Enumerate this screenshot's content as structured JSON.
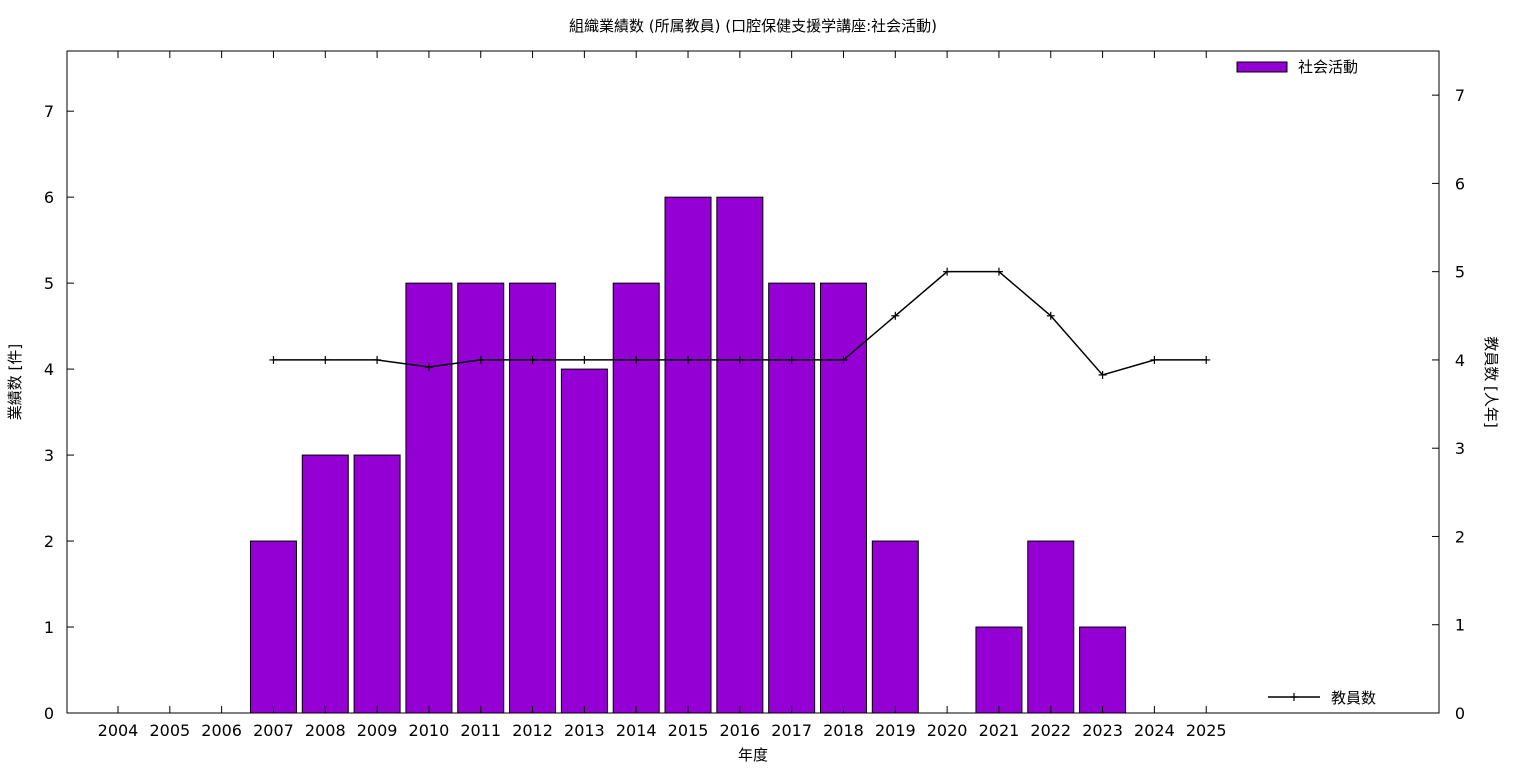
{
  "chart_data": {
    "type": "bar",
    "title": "組織業績数 (所属教員) (口腔保健支援学講座:社会活動)",
    "xlabel": "年度",
    "ylabel": "業績数 [件]",
    "y2label": "教員数 [人年]",
    "categories": [
      "2004",
      "2005",
      "2006",
      "2007",
      "2008",
      "2009",
      "2010",
      "2011",
      "2012",
      "2013",
      "2014",
      "2015",
      "2016",
      "2017",
      "2018",
      "2019",
      "2020",
      "2021",
      "2022",
      "2023",
      "2024",
      "2025"
    ],
    "ylim": [
      0,
      7.7
    ],
    "y2lim": [
      0,
      7.5
    ],
    "yticks": [
      "0",
      "1",
      "2",
      "3",
      "4",
      "5",
      "6",
      "7"
    ],
    "y2ticks": [
      "0",
      "1",
      "2",
      "3",
      "4",
      "5",
      "6",
      "7"
    ],
    "grid": false,
    "legend_placement": "top-right",
    "series": [
      {
        "name": "社会活動",
        "type": "bar",
        "axis": "y",
        "color": "#9400d3",
        "values": [
          0,
          0,
          0,
          2,
          3,
          3,
          5,
          5,
          5,
          4,
          5,
          6,
          6,
          5,
          5,
          2,
          0,
          1,
          2,
          1,
          0,
          0
        ]
      },
      {
        "name": "教員数",
        "type": "line",
        "axis": "y2",
        "color": "#000000",
        "values": [
          null,
          null,
          null,
          4,
          4,
          4,
          3.92,
          4,
          4,
          4,
          4,
          4,
          4,
          4,
          4,
          4.5,
          5,
          5,
          4.5,
          3.83,
          4,
          4
        ]
      }
    ]
  }
}
